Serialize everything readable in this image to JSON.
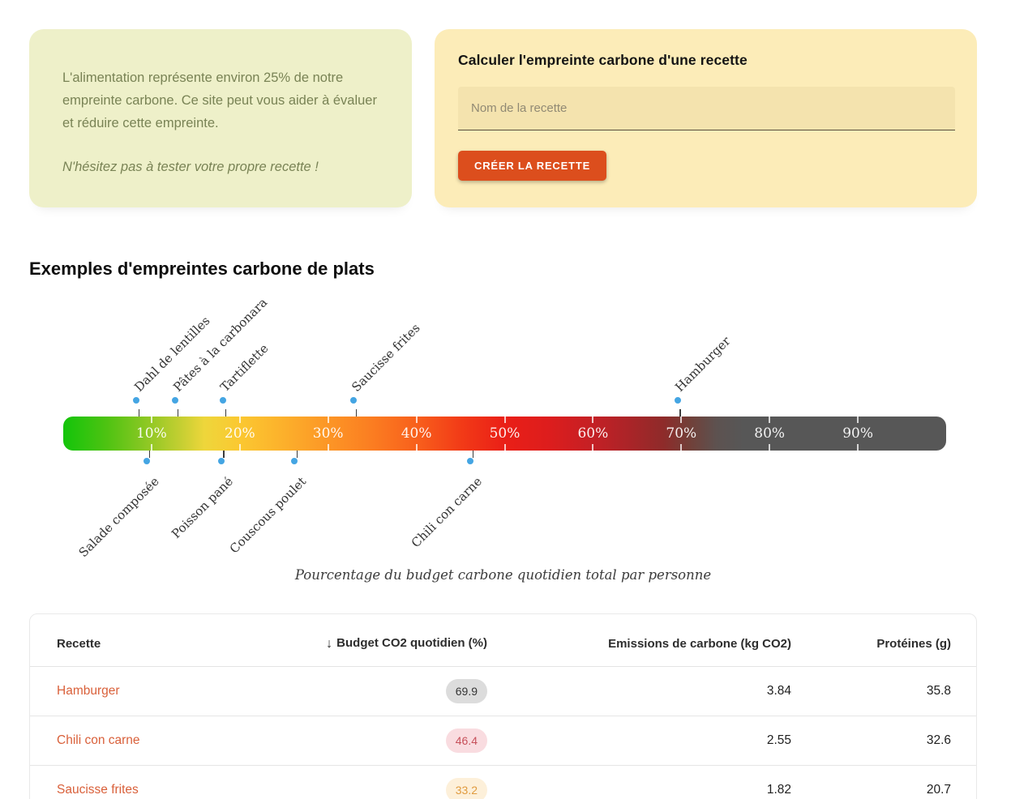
{
  "info_card": {
    "paragraph": "L'alimentation représente environ 25% de notre empreinte carbone. Ce site peut vous aider à évaluer et réduire cette empreinte.",
    "note": "N'hésitez pas à tester votre propre recette !"
  },
  "create_card": {
    "title": "Calculer l'empreinte carbone d'une recette",
    "input_placeholder": "Nom de la recette",
    "input_value": "",
    "button_label": "CRÉER LA RECETTE"
  },
  "section": {
    "title": "Exemples d'empreintes carbone de plats"
  },
  "chart_data": {
    "type": "scatter",
    "caption": "Pourcentage du budget carbone quotidien total par personne",
    "axis": {
      "unit": "%",
      "range": [
        0,
        100
      ],
      "ticks": [
        "10%",
        "20%",
        "30%",
        "40%",
        "50%",
        "60%",
        "70%",
        "80%",
        "90%"
      ]
    },
    "markers": [
      {
        "name": "Dahl de lentilles",
        "percent": 8.6,
        "side": "top"
      },
      {
        "name": "Pâtes à la carbonara",
        "percent": 13.0,
        "side": "top"
      },
      {
        "name": "Tartiflette",
        "percent": 18.4,
        "side": "top"
      },
      {
        "name": "Saucisse frites",
        "percent": 33.2,
        "side": "top"
      },
      {
        "name": "Hamburger",
        "percent": 69.9,
        "side": "top"
      },
      {
        "name": "Salade composée",
        "percent": 9.8,
        "side": "bottom"
      },
      {
        "name": "Poisson pané",
        "percent": 18.2,
        "side": "bottom"
      },
      {
        "name": "Couscous poulet",
        "percent": 26.5,
        "side": "bottom"
      },
      {
        "name": "Chili con carne",
        "percent": 46.4,
        "side": "bottom"
      }
    ],
    "gradient_colors": [
      "#13c40a",
      "#eed63b",
      "#fc9626",
      "#ea1f17",
      "#ab2428",
      "#575757"
    ]
  },
  "table": {
    "headers": [
      "Recette",
      "Budget CO2 quotidien (%)",
      "Emissions de carbone (kg CO2)",
      "Protéines (g)"
    ],
    "sort": {
      "column": "Budget CO2 quotidien (%)",
      "direction": "desc",
      "arrow": "↓"
    },
    "rows": [
      {
        "recette": "Hamburger",
        "budget": "69.9",
        "badge_bg": "#dcdcdc",
        "badge_color": "#353535",
        "emissions": "3.84",
        "proteines": "35.8"
      },
      {
        "recette": "Chili con carne",
        "budget": "46.4",
        "badge_bg": "#f9dce0",
        "badge_color": "#c7505a",
        "emissions": "2.55",
        "proteines": "32.6"
      },
      {
        "recette": "Saucisse frites",
        "budget": "33.2",
        "badge_bg": "#fdf0da",
        "badge_color": "#e09b3f",
        "emissions": "1.82",
        "proteines": "20.7"
      }
    ]
  },
  "colors": {
    "accent_button": "#dc4e1d",
    "recipe_link": "#d9603a",
    "info_card_bg": "#eef0c9",
    "create_card_bg": "#fcecb8",
    "marker_pin": "#44a5e3",
    "bar_gray_end": "#575757"
  }
}
